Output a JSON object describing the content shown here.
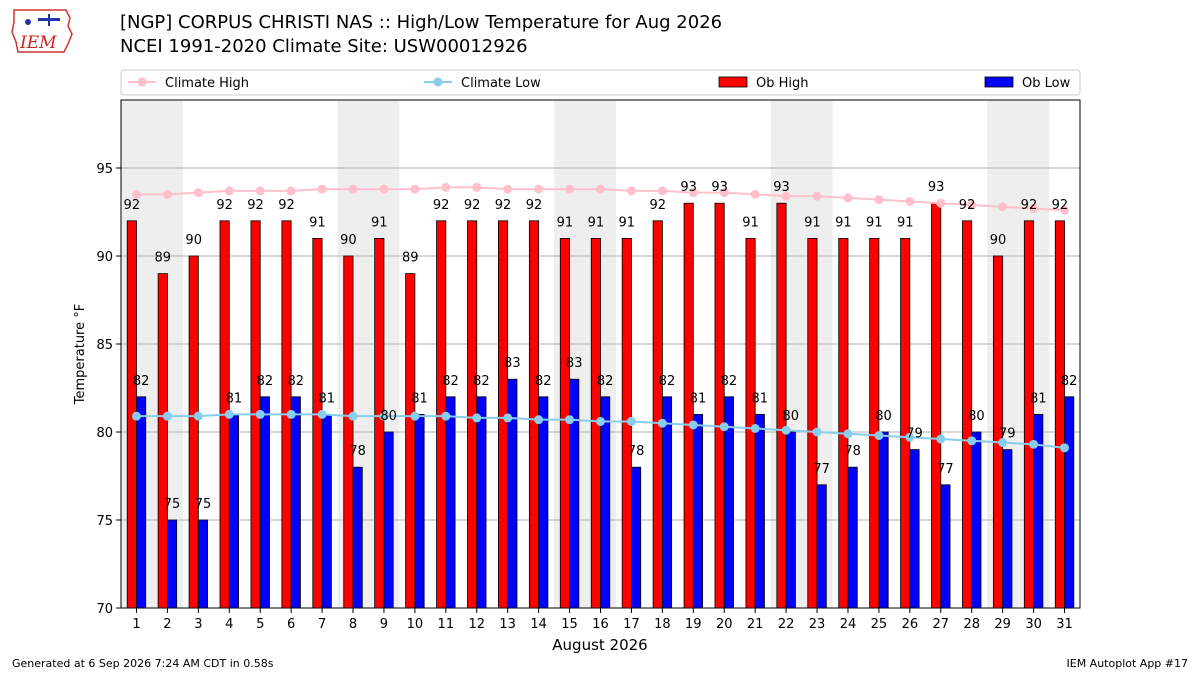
{
  "header": {
    "title": "[NGP] CORPUS CHRISTI NAS :: High/Low Temperature for Aug 2026",
    "subtitle": "NCEI 1991-2020 Climate Site: USW00012926",
    "logo_text": "IEM"
  },
  "footer": {
    "generated": "Generated at 6 Sep 2026 7:24 AM CDT in 0.58s",
    "app": "IEM Autoplot App #17"
  },
  "colors": {
    "ob_high": "#ff0000",
    "ob_low": "#0000ff",
    "climate_high": "#ffc0cb",
    "climate_low": "#87ceeb",
    "weekend_band": "#eeeeee"
  },
  "chart_data": {
    "type": "bar",
    "xlabel": "August 2026",
    "ylabel": "Temperature °F",
    "ylim": [
      70,
      99
    ],
    "yticks": [
      70,
      75,
      80,
      85,
      90,
      95
    ],
    "grid": true,
    "legend_placement": "top",
    "categories": [
      "1",
      "2",
      "3",
      "4",
      "5",
      "6",
      "7",
      "8",
      "9",
      "10",
      "11",
      "12",
      "13",
      "14",
      "15",
      "16",
      "17",
      "18",
      "19",
      "20",
      "21",
      "22",
      "23",
      "24",
      "25",
      "26",
      "27",
      "28",
      "29",
      "30",
      "31"
    ],
    "shaded_days": [
      1,
      2,
      8,
      9,
      15,
      16,
      22,
      23,
      29,
      30
    ],
    "series": [
      {
        "name": "Climate High",
        "kind": "line",
        "values": [
          93.5,
          93.5,
          93.6,
          93.7,
          93.7,
          93.7,
          93.8,
          93.8,
          93.8,
          93.8,
          93.9,
          93.9,
          93.8,
          93.8,
          93.8,
          93.8,
          93.7,
          93.7,
          93.6,
          93.6,
          93.5,
          93.4,
          93.4,
          93.3,
          93.2,
          93.1,
          93.0,
          92.9,
          92.8,
          92.7,
          92.6
        ]
      },
      {
        "name": "Climate Low",
        "kind": "line",
        "values": [
          80.9,
          80.9,
          80.9,
          81.0,
          81.0,
          81.0,
          81.0,
          80.9,
          80.9,
          80.9,
          80.9,
          80.8,
          80.8,
          80.7,
          80.7,
          80.6,
          80.6,
          80.5,
          80.4,
          80.3,
          80.2,
          80.1,
          80.0,
          79.9,
          79.8,
          79.7,
          79.6,
          79.5,
          79.4,
          79.3,
          79.1
        ]
      },
      {
        "name": "Ob High",
        "kind": "bar",
        "values": [
          92,
          89,
          90,
          92,
          92,
          92,
          91,
          90,
          91,
          89,
          92,
          92,
          92,
          92,
          91,
          91,
          91,
          92,
          93,
          93,
          91,
          93,
          91,
          91,
          91,
          91,
          93,
          92,
          90,
          92,
          92
        ]
      },
      {
        "name": "Ob Low",
        "kind": "bar",
        "values": [
          82,
          75,
          75,
          81,
          82,
          82,
          81,
          78,
          80,
          81,
          82,
          82,
          83,
          82,
          83,
          82,
          78,
          82,
          81,
          82,
          81,
          80,
          77,
          78,
          80,
          79,
          77,
          80,
          79,
          81,
          82
        ]
      }
    ]
  }
}
